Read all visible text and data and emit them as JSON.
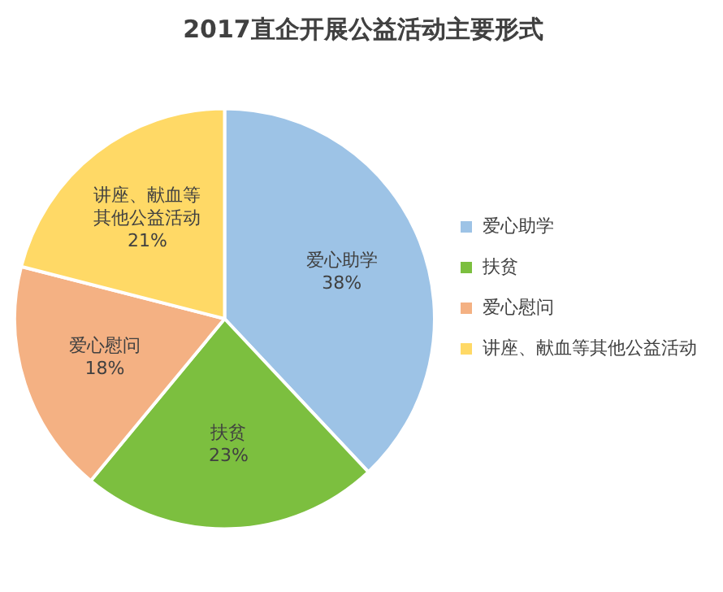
{
  "chart_data": {
    "type": "pie",
    "title": "2017直企开展公益活动主要形式",
    "categories": [
      "爱心助学",
      "扶贫",
      "爱心慰问",
      "讲座、献血等其他公益活动"
    ],
    "values": [
      38,
      23,
      18,
      21
    ],
    "value_labels": [
      "爱心助学\n38%",
      "扶贫\n23%",
      "爱心慰问\n18%",
      "讲座、献血等其他公益活动\n21%"
    ],
    "colors": [
      "#9dc3e6",
      "#7cbf3f",
      "#f4b183",
      "#ffd966"
    ],
    "legend": "right"
  }
}
